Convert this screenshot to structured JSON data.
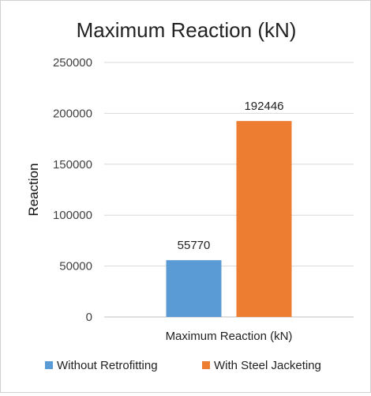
{
  "chart_data": {
    "type": "bar",
    "title": "Maximum Reaction (kN)",
    "categories": [
      "Maximum Reaction (kN)"
    ],
    "series": [
      {
        "name": "Without Retrofitting",
        "values": [
          55770
        ],
        "color": "#5b9bd5"
      },
      {
        "name": "With Steel Jacketing",
        "values": [
          192446
        ],
        "color": "#ed7d31"
      }
    ],
    "xlabel": "",
    "ylabel": "Reaction",
    "ylim": [
      0,
      250000
    ],
    "yticks": [
      0,
      50000,
      100000,
      150000,
      200000,
      250000
    ],
    "grid": true,
    "legend_position": "bottom",
    "data_labels": true
  }
}
